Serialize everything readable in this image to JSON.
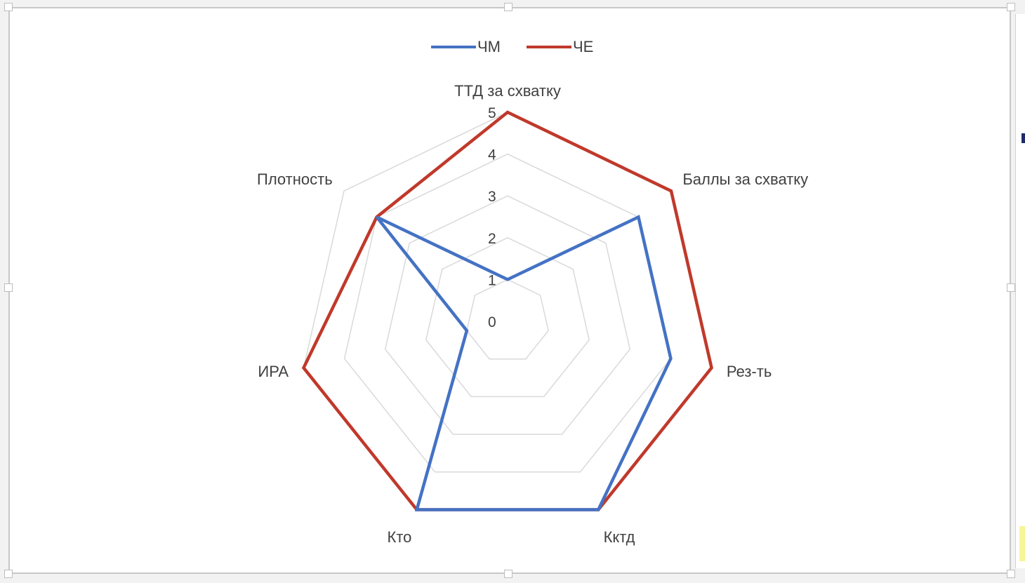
{
  "chart_data": {
    "type": "radar",
    "categories": [
      "ТТД за схватку",
      "Баллы за схватку",
      "Рез-ть",
      "Кктд",
      "Кто",
      "ИРА",
      "Плотность"
    ],
    "series": [
      {
        "name": "ЧМ",
        "color": "#4472c4",
        "values": [
          1,
          4,
          4,
          5,
          5,
          1,
          4
        ]
      },
      {
        "name": "ЧЕ",
        "color": "#c0392b",
        "values": [
          5,
          5,
          5,
          5,
          5,
          5,
          4
        ]
      }
    ],
    "rlim": [
      0,
      5
    ],
    "ticks": [
      "0",
      "1",
      "2",
      "3",
      "4",
      "5"
    ],
    "legend_position": "top",
    "grid": true,
    "gridline_color": "#d9d9d9"
  }
}
